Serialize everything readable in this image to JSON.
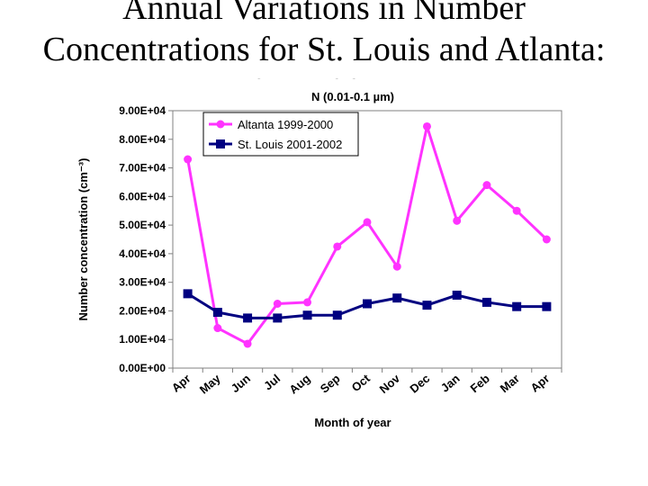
{
  "slide": {
    "title_lines": [
      "Annual Variations in Number",
      "Concentrations for St. Louis and Atlanta:",
      "10 to 100 nm"
    ]
  },
  "chart_data": {
    "type": "line",
    "title": "N (0.01-0.1 µm)",
    "xlabel": "Month of year",
    "ylabel": "Number concentration (cm⁻³)",
    "categories": [
      "Apr",
      "May",
      "Jun",
      "Jul",
      "Aug",
      "Sep",
      "Oct",
      "Nov",
      "Dec",
      "Jan",
      "Feb",
      "Mar",
      "Apr"
    ],
    "ylim": [
      0,
      90000
    ],
    "yticks": [
      0,
      10000,
      20000,
      30000,
      40000,
      50000,
      60000,
      70000,
      80000,
      90000
    ],
    "ytick_labels": [
      "0.00E+00",
      "1.00E+04",
      "2.00E+04",
      "3.00E+04",
      "4.00E+04",
      "5.00E+04",
      "6.00E+04",
      "7.00E+04",
      "8.00E+04",
      "9.00E+04"
    ],
    "legend_position": "top-left",
    "grid": false,
    "series": [
      {
        "name": "Altanta 1999-2000",
        "color": "#ff33ff",
        "marker": "circle",
        "values": [
          73000,
          14000,
          8500,
          22500,
          23000,
          42500,
          51000,
          35500,
          84500,
          51500,
          64000,
          55000,
          45000
        ]
      },
      {
        "name": "St. Louis 2001-2002",
        "color": "#000080",
        "marker": "square",
        "values": [
          26000,
          19500,
          17500,
          17500,
          18500,
          18500,
          22500,
          24500,
          22000,
          25500,
          23000,
          21500,
          21500
        ]
      }
    ]
  }
}
